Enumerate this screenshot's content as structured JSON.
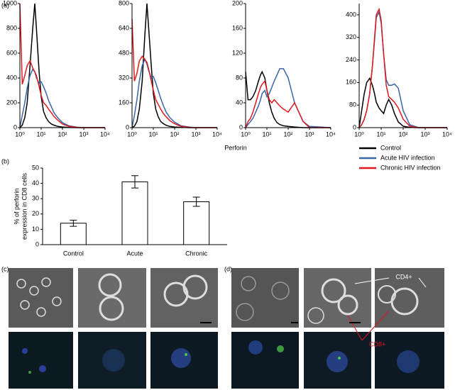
{
  "panel_labels": {
    "a": "(a)",
    "b": "(b)",
    "c": "(c)",
    "d": "(d)"
  },
  "shared_x_label": "Perforin",
  "legend": [
    {
      "name": "Control",
      "color": "#000000"
    },
    {
      "name": "Acute HIV infection",
      "color": "#3a64a8"
    },
    {
      "name": "Chronic HIV infection",
      "color": "#e0191f"
    }
  ],
  "micrograph_labels": {
    "cd4": "CD4+",
    "cd8": "CD8+"
  },
  "chart_data": [
    {
      "type": "line",
      "xscale": "log",
      "x": [
        1,
        1.3,
        1.7,
        2.2,
        3,
        4,
        5,
        6,
        8,
        10,
        13,
        17,
        22,
        30,
        40,
        60,
        100,
        200,
        500,
        1000,
        10000
      ],
      "xlim": [
        1,
        10000
      ],
      "xticks": [
        {
          "value": 1,
          "label": "10⁰"
        },
        {
          "value": 10,
          "label": "10¹"
        },
        {
          "value": 100,
          "label": "10²"
        },
        {
          "value": 1000,
          "label": "10³"
        },
        {
          "value": 10000,
          "label": "10⁴"
        }
      ],
      "ylim": [
        0,
        1000
      ],
      "yticks": [
        0,
        200,
        400,
        600,
        800,
        1000
      ],
      "series": [
        {
          "color": "#000000",
          "values": [
            0,
            20,
            80,
            200,
            500,
            800,
            1000,
            800,
            450,
            250,
            130,
            80,
            50,
            30,
            20,
            10,
            5,
            2,
            0,
            0,
            0
          ]
        },
        {
          "color": "#3a64a8",
          "values": [
            0,
            100,
            200,
            320,
            420,
            470,
            450,
            400,
            360,
            370,
            330,
            280,
            220,
            170,
            120,
            80,
            40,
            15,
            3,
            0,
            0
          ]
        },
        {
          "color": "#e0191f",
          "values": [
            1000,
            350,
            420,
            500,
            540,
            480,
            450,
            420,
            330,
            260,
            200,
            180,
            150,
            120,
            90,
            60,
            30,
            10,
            3,
            0,
            0
          ]
        }
      ]
    },
    {
      "type": "line",
      "xscale": "log",
      "x": [
        1,
        1.3,
        1.7,
        2.2,
        3,
        4,
        5,
        6,
        8,
        10,
        13,
        17,
        22,
        30,
        40,
        60,
        100,
        200,
        500,
        1000,
        10000
      ],
      "xlim": [
        1,
        10000
      ],
      "xticks": [
        {
          "value": 1,
          "label": "10⁰"
        },
        {
          "value": 10,
          "label": "10¹"
        },
        {
          "value": 100,
          "label": "10²"
        },
        {
          "value": 1000,
          "label": "10³"
        },
        {
          "value": 10000,
          "label": "10⁴"
        }
      ],
      "ylim": [
        0,
        800
      ],
      "yticks": [
        0,
        160,
        320,
        480,
        640,
        800
      ],
      "series": [
        {
          "color": "#000000",
          "values": [
            0,
            10,
            40,
            120,
            300,
            600,
            800,
            650,
            400,
            220,
            120,
            70,
            40,
            25,
            15,
            8,
            4,
            2,
            0,
            0,
            0
          ]
        },
        {
          "color": "#3a64a8",
          "values": [
            0,
            80,
            180,
            300,
            400,
            440,
            410,
            370,
            320,
            330,
            290,
            240,
            190,
            140,
            100,
            65,
            35,
            12,
            3,
            0,
            0
          ]
        },
        {
          "color": "#e0191f",
          "values": [
            700,
            300,
            350,
            430,
            460,
            440,
            420,
            380,
            300,
            240,
            180,
            150,
            120,
            90,
            70,
            45,
            25,
            8,
            2,
            0,
            0
          ]
        }
      ]
    },
    {
      "type": "line",
      "xscale": "log",
      "x": [
        1,
        1.3,
        1.7,
        2.2,
        3,
        4,
        5,
        6,
        8,
        10,
        13,
        17,
        22,
        30,
        40,
        60,
        100,
        200,
        500,
        1000,
        10000
      ],
      "xlim": [
        1,
        10000
      ],
      "xticks": [
        {
          "value": 1,
          "label": "10⁰"
        },
        {
          "value": 10,
          "label": "10¹"
        },
        {
          "value": 100,
          "label": "10²"
        },
        {
          "value": 1000,
          "label": "10³"
        },
        {
          "value": 10000,
          "label": "10⁴"
        }
      ],
      "ylim": [
        0,
        200
      ],
      "yticks": [
        0,
        40,
        80,
        120,
        160,
        200
      ],
      "series": [
        {
          "color": "#000000",
          "values": [
            90,
            45,
            45,
            50,
            60,
            75,
            85,
            90,
            80,
            60,
            40,
            25,
            15,
            8,
            5,
            3,
            2,
            1,
            0,
            0,
            0
          ]
        },
        {
          "color": "#3a64a8",
          "values": [
            0,
            5,
            10,
            15,
            25,
            35,
            45,
            55,
            60,
            50,
            55,
            65,
            75,
            85,
            95,
            95,
            80,
            40,
            10,
            2,
            0
          ]
        },
        {
          "color": "#e0191f",
          "values": [
            0,
            10,
            15,
            25,
            40,
            55,
            65,
            70,
            75,
            60,
            45,
            40,
            45,
            40,
            35,
            30,
            25,
            40,
            10,
            0,
            0
          ]
        }
      ]
    },
    {
      "type": "line",
      "xscale": "log",
      "x": [
        1,
        1.3,
        1.7,
        2.2,
        3,
        4,
        5,
        6,
        8,
        10,
        13,
        17,
        22,
        30,
        40,
        60,
        100,
        200,
        500,
        1000,
        10000
      ],
      "xlim": [
        1,
        10000
      ],
      "xticks": [
        {
          "value": 1,
          "label": "10⁰"
        },
        {
          "value": 10,
          "label": "10¹"
        },
        {
          "value": 100,
          "label": "10²"
        },
        {
          "value": 1000,
          "label": "10³"
        },
        {
          "value": 10000,
          "label": "10⁴"
        }
      ],
      "ylim": [
        0,
        440
      ],
      "yticks": [
        0,
        80,
        160,
        240,
        320,
        400
      ],
      "series": [
        {
          "color": "#000000",
          "values": [
            0,
            60,
            120,
            160,
            175,
            150,
            120,
            90,
            70,
            60,
            50,
            80,
            100,
            80,
            50,
            20,
            5,
            1,
            0,
            0,
            0
          ]
        },
        {
          "color": "#3a64a8",
          "values": [
            0,
            10,
            30,
            60,
            120,
            220,
            310,
            390,
            410,
            370,
            260,
            170,
            150,
            150,
            155,
            140,
            60,
            10,
            0,
            0,
            0
          ]
        },
        {
          "color": "#e0191f",
          "values": [
            0,
            10,
            30,
            60,
            120,
            220,
            320,
            400,
            420,
            380,
            260,
            150,
            110,
            100,
            90,
            70,
            30,
            5,
            0,
            0,
            0
          ]
        }
      ]
    },
    {
      "type": "bar",
      "categories": [
        "Control",
        "Acute",
        "Chronic"
      ],
      "values": [
        14,
        41,
        28
      ],
      "errors": [
        2,
        4,
        3
      ],
      "ylabel": [
        "% of perforin",
        "expression in CD8 cells"
      ],
      "ylim": [
        0,
        50
      ],
      "yticks": [
        0,
        10,
        20,
        30,
        40,
        50
      ],
      "color": "#ffffff"
    }
  ]
}
